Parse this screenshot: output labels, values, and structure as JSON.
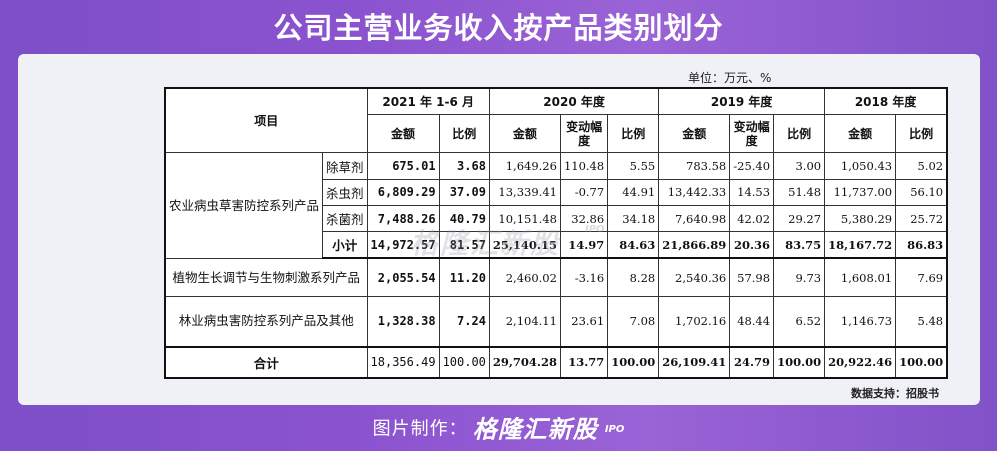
{
  "title": "公司主营业务收入按产品类别划分",
  "unit": "单位：万元、%",
  "source": "数据支持：招股书",
  "watermark": "格隆汇新股",
  "watermark_ipo": "IPO",
  "credit": {
    "label": "图片制作：",
    "brand": "格隆汇新股",
    "ipo": "IPO"
  },
  "table": {
    "item_header": "项目",
    "periods": [
      "2021 年 1-6 月",
      "2020 年度",
      "2019 年度",
      "2018 年度"
    ],
    "sub_amount": "金额",
    "sub_ratio": "比例",
    "sub_change": "变动幅度",
    "group1": "农业病虫草害防控系列产品",
    "rows": [
      {
        "label": "除草剂",
        "cells": [
          "675.01",
          "3.68",
          "1,649.26",
          "110.48",
          "5.55",
          "783.58",
          "-25.40",
          "3.00",
          "1,050.43",
          "5.02"
        ]
      },
      {
        "label": "杀虫剂",
        "cells": [
          "6,809.29",
          "37.09",
          "13,339.41",
          "-0.77",
          "44.91",
          "13,442.33",
          "14.53",
          "51.48",
          "11,737.00",
          "56.10"
        ]
      },
      {
        "label": "杀菌剂",
        "cells": [
          "7,488.26",
          "40.79",
          "10,151.48",
          "32.86",
          "34.18",
          "7,640.98",
          "42.02",
          "29.27",
          "5,380.29",
          "25.72"
        ]
      },
      {
        "label": "小计",
        "cells": [
          "14,972.57",
          "81.57",
          "25,140.15",
          "14.97",
          "84.63",
          "21,866.89",
          "20.36",
          "83.75",
          "18,167.72",
          "86.83"
        ]
      },
      {
        "label": "植物生长调节与生物刺激系列产品",
        "cells": [
          "2,055.54",
          "11.20",
          "2,460.02",
          "-3.16",
          "8.28",
          "2,540.36",
          "57.98",
          "9.73",
          "1,608.01",
          "7.69"
        ]
      },
      {
        "label": "林业病虫害防控系列产品及其他",
        "cells": [
          "1,328.38",
          "7.24",
          "2,104.11",
          "23.61",
          "7.08",
          "1,702.16",
          "48.44",
          "6.52",
          "1,146.73",
          "5.48"
        ]
      },
      {
        "label": "合计",
        "cells": [
          "18,356.49",
          "100.00",
          "29,704.28",
          "13.77",
          "100.00",
          "26,109.41",
          "24.79",
          "100.00",
          "20,922.46",
          "100.00"
        ]
      }
    ]
  }
}
